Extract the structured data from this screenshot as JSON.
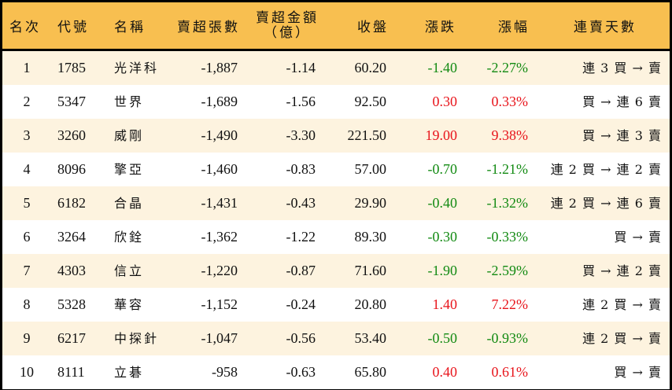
{
  "table": {
    "headers": {
      "rank": "名次",
      "code": "代號",
      "name": "名稱",
      "sell_lots": "賣超張數",
      "sell_amount_line1": "賣超金額",
      "sell_amount_line2": "（億）",
      "close": "收盤",
      "change": "漲跌",
      "change_pct": "漲幅",
      "streak": "連賣天數"
    },
    "colors": {
      "header_bg": "#F8BF50",
      "row_odd_bg": "#FDF3DF",
      "row_even_bg": "#FFFFFF",
      "up": "#E8141B",
      "down": "#128A12",
      "border": "#000000"
    },
    "rows": [
      {
        "rank": "1",
        "code": "1785",
        "name": "光洋科",
        "sell_lots": "-1,887",
        "sell_amount": "-1.14",
        "close": "60.20",
        "change": "-1.40",
        "change_pct": "-2.27%",
        "direction": "down",
        "streak": "連 3 買 → 賣"
      },
      {
        "rank": "2",
        "code": "5347",
        "name": "世界",
        "sell_lots": "-1,689",
        "sell_amount": "-1.56",
        "close": "92.50",
        "change": "0.30",
        "change_pct": "0.33%",
        "direction": "up",
        "streak": "買 → 連 6 賣"
      },
      {
        "rank": "3",
        "code": "3260",
        "name": "威剛",
        "sell_lots": "-1,490",
        "sell_amount": "-3.30",
        "close": "221.50",
        "change": "19.00",
        "change_pct": "9.38%",
        "direction": "up",
        "streak": "買 → 連 3 賣"
      },
      {
        "rank": "4",
        "code": "8096",
        "name": "擎亞",
        "sell_lots": "-1,460",
        "sell_amount": "-0.83",
        "close": "57.00",
        "change": "-0.70",
        "change_pct": "-1.21%",
        "direction": "down",
        "streak": "連 2 買 → 連 2 賣"
      },
      {
        "rank": "5",
        "code": "6182",
        "name": "合晶",
        "sell_lots": "-1,431",
        "sell_amount": "-0.43",
        "close": "29.90",
        "change": "-0.40",
        "change_pct": "-1.32%",
        "direction": "down",
        "streak": "連 2 買 → 連 6 賣"
      },
      {
        "rank": "6",
        "code": "3264",
        "name": "欣銓",
        "sell_lots": "-1,362",
        "sell_amount": "-1.22",
        "close": "89.30",
        "change": "-0.30",
        "change_pct": "-0.33%",
        "direction": "down",
        "streak": "買 → 賣"
      },
      {
        "rank": "7",
        "code": "4303",
        "name": "信立",
        "sell_lots": "-1,220",
        "sell_amount": "-0.87",
        "close": "71.60",
        "change": "-1.90",
        "change_pct": "-2.59%",
        "direction": "down",
        "streak": "買 → 連 2 賣"
      },
      {
        "rank": "8",
        "code": "5328",
        "name": "華容",
        "sell_lots": "-1,152",
        "sell_amount": "-0.24",
        "close": "20.80",
        "change": "1.40",
        "change_pct": "7.22%",
        "direction": "up",
        "streak": "連 2 買 → 賣"
      },
      {
        "rank": "9",
        "code": "6217",
        "name": "中探針",
        "sell_lots": "-1,047",
        "sell_amount": "-0.56",
        "close": "53.40",
        "change": "-0.50",
        "change_pct": "-0.93%",
        "direction": "down",
        "streak": "連 2 買 → 賣"
      },
      {
        "rank": "10",
        "code": "8111",
        "name": "立碁",
        "sell_lots": "-958",
        "sell_amount": "-0.63",
        "close": "65.80",
        "change": "0.40",
        "change_pct": "0.61%",
        "direction": "up",
        "streak": "買 → 賣"
      }
    ]
  }
}
